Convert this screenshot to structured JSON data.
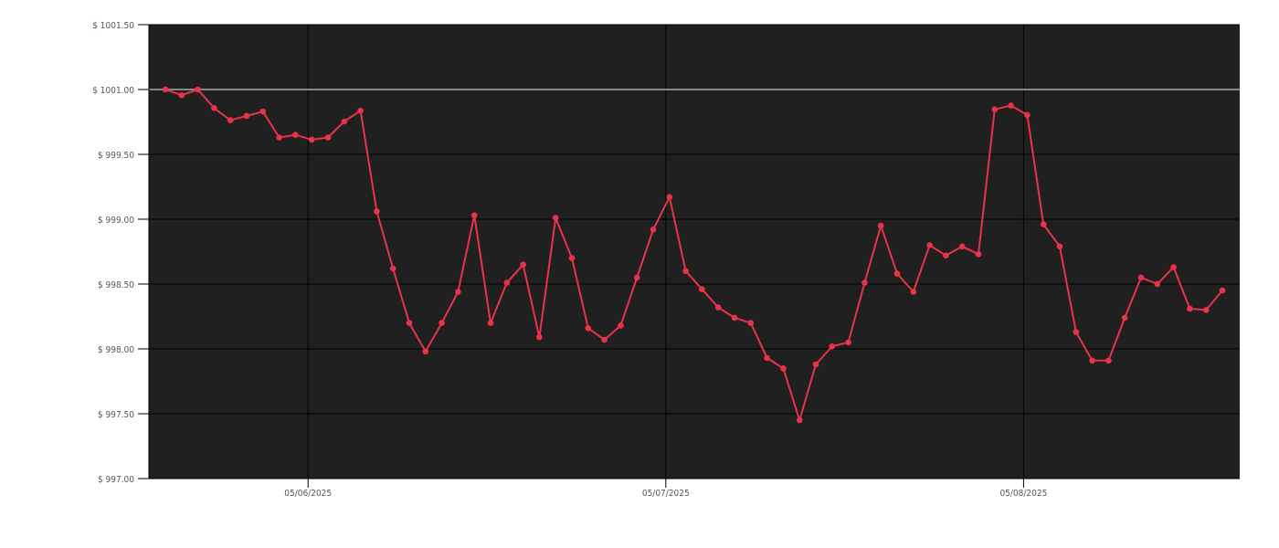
{
  "chart_data": {
    "type": "line",
    "title": "",
    "xlabel": "",
    "ylabel": "",
    "ylim": [
      997.0,
      1001.5
    ],
    "y_ticks": [
      "$ 1001.50",
      "$ 1001.00",
      "$ 999.50",
      "$ 999.00",
      "$ 998.50",
      "$ 998.00",
      "$ 997.50",
      "$ 997.00"
    ],
    "y_tick_values": [
      1001.5,
      1001.0,
      999.5,
      999.0,
      998.5,
      998.0,
      997.5,
      997.0
    ],
    "x_ticks": [
      {
        "label": "05/06/2025",
        "index": 9
      },
      {
        "label": "05/07/2025",
        "index": 31
      },
      {
        "label": "05/08/2025",
        "index": 53
      }
    ],
    "reference_line": 1001.0,
    "grid": true,
    "background": "#202020",
    "colors": {
      "line": "#e8334a",
      "reference": "#888888",
      "grid": "#000000"
    },
    "series": [
      {
        "values": [
          1001.0,
          1000.87,
          1001.0,
          1000.57,
          1000.29,
          1000.39,
          1000.49,
          999.89,
          999.95,
          999.84,
          999.89,
          1000.26,
          1000.51,
          999.06,
          998.62,
          998.2,
          997.98,
          998.2,
          998.44,
          999.03,
          998.2,
          998.51,
          998.65,
          998.09,
          999.01,
          998.7,
          998.16,
          998.07,
          998.18,
          998.55,
          998.92,
          999.17,
          998.6,
          998.46,
          998.32,
          998.24,
          998.2,
          997.93,
          997.85,
          997.45,
          997.88,
          998.02,
          998.05,
          998.51,
          998.95,
          998.58,
          998.44,
          998.8,
          998.72,
          998.79,
          998.73,
          1000.54,
          1000.63,
          1000.41,
          998.96,
          998.79,
          998.13,
          997.91,
          997.91,
          998.24,
          998.55,
          998.5,
          998.63,
          998.31,
          998.3,
          998.45
        ]
      }
    ]
  }
}
